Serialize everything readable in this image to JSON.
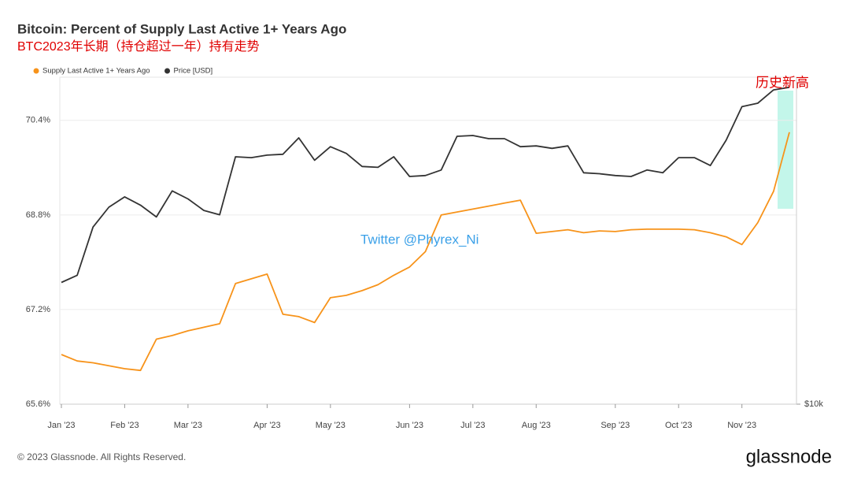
{
  "chart_data": {
    "type": "line",
    "title": "Bitcoin: Percent of Supply Last Active 1+ Years Ago",
    "subtitle": "BTC2023年长期（持仓超过一年）持有走势",
    "annotations": [
      "历史新高",
      "Twitter @Phyrex_Ni"
    ],
    "categories": [
      "Jan '23",
      null,
      null,
      null,
      "Feb '23",
      null,
      null,
      null,
      "Mar '23",
      null,
      null,
      null,
      null,
      "Apr '23",
      null,
      null,
      null,
      "May '23",
      null,
      null,
      null,
      null,
      "Jun '23",
      null,
      null,
      null,
      "Jul '23",
      null,
      null,
      null,
      "Aug '23",
      null,
      null,
      null,
      null,
      "Sep '23",
      null,
      null,
      null,
      "Oct '23",
      null,
      null,
      null,
      "Nov '23",
      null,
      null,
      null
    ],
    "series": [
      {
        "name": "Supply Last Active 1+ Years Ago",
        "color": "#f7931a",
        "axis": "y",
        "values": [
          66.44,
          66.33,
          66.3,
          66.25,
          66.2,
          66.17,
          66.7,
          66.76,
          66.84,
          66.9,
          66.96,
          67.64,
          67.72,
          67.8,
          67.12,
          67.08,
          66.98,
          67.4,
          67.44,
          67.52,
          67.62,
          67.78,
          67.92,
          68.18,
          68.8,
          68.85,
          68.9,
          68.95,
          69.0,
          69.05,
          68.49,
          68.52,
          68.55,
          68.5,
          68.53,
          68.52,
          68.55,
          68.56,
          68.56,
          68.56,
          68.55,
          68.5,
          68.43,
          68.3,
          68.67,
          69.2,
          70.2
        ]
      },
      {
        "name": "Price [USD]",
        "color": "#333333",
        "axis": "y2",
        "values": [
          16600,
          17100,
          20900,
          22700,
          23700,
          22900,
          21800,
          24300,
          23500,
          22400,
          22000,
          28000,
          27900,
          28200,
          28300,
          30300,
          27600,
          29200,
          28400,
          26900,
          26800,
          28000,
          25800,
          25900,
          26500,
          30500,
          30600,
          30200,
          30200,
          29200,
          29300,
          29000,
          29300,
          26200,
          26100,
          25900,
          25800,
          26500,
          26200,
          27900,
          27900,
          27000,
          30000,
          34500,
          35000,
          37000,
          37400
        ]
      }
    ],
    "ylim": [
      65.6,
      71.13
    ],
    "yticks": [
      {
        "value": 65.6,
        "label": "65.6%"
      },
      {
        "value": 67.2,
        "label": "67.2%"
      },
      {
        "value": 68.8,
        "label": "68.8%"
      },
      {
        "value": 70.4,
        "label": "70.4%"
      }
    ],
    "y2lim": [
      10000,
      39000
    ],
    "y2scale": "log",
    "y2ticks": [
      {
        "value": 10000,
        "label": "$10k"
      }
    ],
    "grid": true
  },
  "footer": {
    "copyright": "© 2023 Glassnode. All Rights Reserved.",
    "logo": "glassnode"
  }
}
